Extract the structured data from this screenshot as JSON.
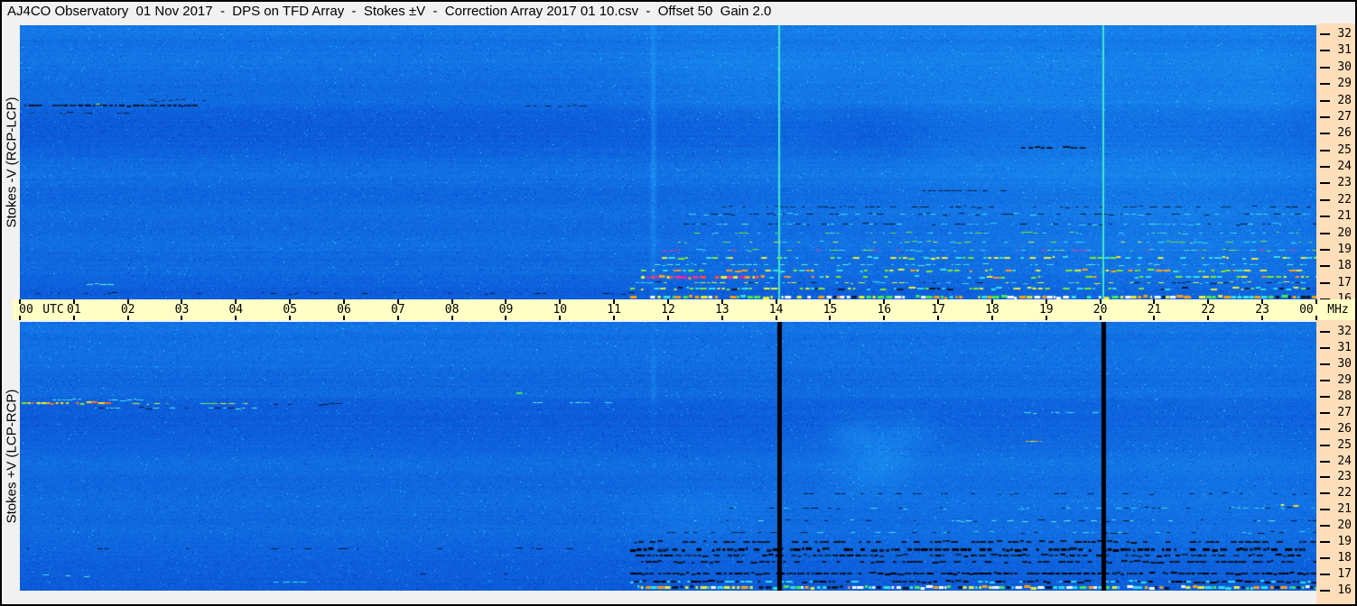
{
  "window": {
    "title": "AJ4CO Observatory  01 Nov 2017  -  DPS on TFD Array  -  Stokes ±V  -  Correction Array 2017 01 10.csv  -  Offset 50  Gain 2.0"
  },
  "left_labels": {
    "top": "Stokes -V (RCP-LCP)",
    "bottom": "Stokes +V (LCP-RCP)"
  },
  "time_axis": {
    "utc_label": "UTC",
    "unit_label": "MHz",
    "hours": [
      "00",
      "01",
      "02",
      "03",
      "04",
      "05",
      "06",
      "07",
      "08",
      "09",
      "10",
      "11",
      "12",
      "13",
      "14",
      "15",
      "16",
      "17",
      "18",
      "19",
      "20",
      "21",
      "22",
      "23",
      "00"
    ]
  },
  "freq_axis": {
    "ticks": [
      "32",
      "31",
      "30",
      "29",
      "28",
      "27",
      "26",
      "25",
      "24",
      "23",
      "22",
      "21",
      "20",
      "19",
      "18",
      "17",
      "16"
    ]
  },
  "colors": {
    "frame_bg": "#F1F1F1",
    "time_strip_bg": "#FFFFC6",
    "freq_col_bg": "#FFDEBA",
    "panel_base_blue": "#0E64DE",
    "marker_cyan": "#3FE9C4",
    "marker_black": "#000000",
    "text": "#000000"
  },
  "chart_data": {
    "type": "heatmap",
    "title": "AJ4CO Observatory 01 Nov 2017 - DPS on TFD Array - Stokes ±V - Correction Array 2017 01 10.csv - Offset 50 Gain 2.0",
    "x_axis": {
      "label": "UTC",
      "unit": "hours",
      "range": [
        0,
        24
      ],
      "tick_labels": [
        "00",
        "01",
        "02",
        "03",
        "04",
        "05",
        "06",
        "07",
        "08",
        "09",
        "10",
        "11",
        "12",
        "13",
        "14",
        "15",
        "16",
        "17",
        "18",
        "19",
        "20",
        "21",
        "22",
        "23",
        "00"
      ]
    },
    "y_axis": {
      "label": "MHz",
      "unit": "MHz",
      "range": [
        16,
        32
      ],
      "tick_labels": [
        32,
        31,
        30,
        29,
        28,
        27,
        26,
        25,
        24,
        23,
        22,
        21,
        20,
        19,
        18,
        17,
        16
      ]
    },
    "legend": "off",
    "grid": "off",
    "panels": [
      {
        "id": "stokes-minus-v",
        "label": "Stokes -V (RCP-LCP)",
        "bands": [
          {
            "f": 32.3,
            "w": 0.5,
            "d": 20
          },
          {
            "f": 31.0,
            "w": 0.9,
            "d": 14
          },
          {
            "f": 29.8,
            "w": 0.9,
            "d": 10
          },
          {
            "f": 28.1,
            "w": 0.6,
            "d": 8
          },
          {
            "f": 26.3,
            "w": 1.2,
            "d": -9
          },
          {
            "f": 23.6,
            "w": 0.9,
            "d": 11
          },
          {
            "f": 21.2,
            "w": 0.7,
            "d": 9
          },
          {
            "f": 19.4,
            "w": 0.8,
            "d": 9
          },
          {
            "f": 17.9,
            "w": 0.5,
            "d": 6
          },
          {
            "f": 16.4,
            "w": 0.5,
            "d": -6
          }
        ],
        "patches": [
          {
            "h": 18.0,
            "hw": 5.0,
            "f": 27.5,
            "fw": 4.5,
            "d": 13
          },
          {
            "h": 21.8,
            "hw": 2.8,
            "f": 22.0,
            "fw": 7.0,
            "d": 9
          },
          {
            "h": 19.0,
            "hw": 6.0,
            "f": 24.0,
            "fw": 9.0,
            "d": 8
          },
          {
            "h": 15.8,
            "hw": 1.1,
            "f": 26.0,
            "fw": 2.0,
            "d": -11
          },
          {
            "h": 13.0,
            "hw": 1.5,
            "f": 29.5,
            "fw": 2.5,
            "d": 8
          },
          {
            "h": 11.72,
            "hw": 0.05,
            "f": 25.0,
            "fw": 10.0,
            "d": 26
          },
          {
            "h": 23.0,
            "hw": 1.2,
            "f": 29.0,
            "fw": 3.0,
            "d": 10
          }
        ],
        "streaks": [
          {
            "f": 27.65,
            "h0": 0.1,
            "h1": 3.3,
            "colors": [
              "#04182E",
              "#0A2A50",
              "#001020"
            ],
            "th": 2,
            "density": 0.85
          },
          {
            "f": 27.25,
            "h0": 0.2,
            "h1": 2.1,
            "colors": [
              "#04182E",
              "#123A66"
            ],
            "th": 1,
            "density": 0.5
          },
          {
            "f": 28.0,
            "h0": 2.4,
            "h1": 3.4,
            "colors": [
              "#0A2A50"
            ],
            "th": 1,
            "density": 0.5
          },
          {
            "f": 27.8,
            "h0": 1.1,
            "h1": 2.3,
            "colors": [
              "#CFF04A",
              "#49E855"
            ],
            "th": 1,
            "density": 0.25
          },
          {
            "f": 27.7,
            "h0": 9.25,
            "h1": 10.6,
            "colors": [
              "#04182E",
              "#0A2A50"
            ],
            "th": 1,
            "density": 0.6
          },
          {
            "f": 25.1,
            "h0": 18.55,
            "h1": 19.7,
            "colors": [
              "#04182E",
              "#0A2A50"
            ],
            "th": 2,
            "density": 0.7
          },
          {
            "f": 22.55,
            "h0": 16.5,
            "h1": 18.3,
            "colors": [
              "#04182E"
            ],
            "th": 1,
            "density": 0.5
          },
          {
            "f": 21.6,
            "h0": 13.0,
            "h1": 24.0,
            "colors": [
              "#04182E",
              "#0E3058"
            ],
            "th": 1,
            "density": 0.45
          },
          {
            "f": 21.15,
            "h0": 12.4,
            "h1": 24.0,
            "colors": [
              "#04182E",
              "#35E0E8"
            ],
            "th": 1,
            "density": 0.5
          },
          {
            "f": 20.55,
            "h0": 12.3,
            "h1": 24.0,
            "colors": [
              "#2FC8F0",
              "#04182E",
              "#58F0D8"
            ],
            "th": 1,
            "density": 0.5
          },
          {
            "f": 20.0,
            "h0": 12.5,
            "h1": 24.0,
            "colors": [
              "#35E0E8",
              "#7FE82F"
            ],
            "th": 1,
            "density": 0.4
          },
          {
            "f": 19.45,
            "h0": 12.2,
            "h1": 24.0,
            "colors": [
              "#E8F03A",
              "#35E0E8",
              "#7FE82F"
            ],
            "th": 1,
            "density": 0.45
          },
          {
            "f": 18.95,
            "h0": 11.9,
            "h1": 24.0,
            "colors": [
              "#35E0E8",
              "#FF2F8F",
              "#7FE82F"
            ],
            "th": 1,
            "density": 0.5
          },
          {
            "f": 18.5,
            "h0": 11.9,
            "h1": 24.0,
            "colors": [
              "#7FE82F",
              "#E8F03A",
              "#35E0E8"
            ],
            "th": 2,
            "density": 0.55
          },
          {
            "f": 18.1,
            "h0": 11.6,
            "h1": 24.0,
            "colors": [
              "#35E0E8",
              "#58F0D8"
            ],
            "th": 1,
            "density": 0.5
          },
          {
            "f": 17.7,
            "h0": 11.5,
            "h1": 24.0,
            "colors": [
              "#E8F03A",
              "#7FE82F",
              "#FFA018",
              "#35E0E8"
            ],
            "th": 2,
            "density": 0.6
          },
          {
            "f": 17.35,
            "h0": 11.5,
            "h1": 13.8,
            "colors": [
              "#FF2F8F",
              "#FF4A4A",
              "#E81BB0",
              "#FFA018",
              "#E8F03A"
            ],
            "th": 3,
            "density": 0.95
          },
          {
            "f": 17.35,
            "h0": 13.8,
            "h1": 24.0,
            "colors": [
              "#E8F03A",
              "#7FE82F",
              "#FF8A3A",
              "#35E0E8"
            ],
            "th": 2,
            "density": 0.5
          },
          {
            "f": 17.0,
            "h0": 11.4,
            "h1": 24.0,
            "colors": [
              "#35E0E8",
              "#E8F03A",
              "#04182E"
            ],
            "th": 1,
            "density": 0.55
          },
          {
            "f": 16.6,
            "h0": 11.3,
            "h1": 24.0,
            "colors": [
              "#7FE82F",
              "#35E0E8",
              "#E8F03A",
              "#04182E"
            ],
            "th": 2,
            "density": 0.65
          },
          {
            "f": 16.15,
            "h0": 11.3,
            "h1": 24.0,
            "colors": [
              "#E8F03A",
              "#49E855",
              "#35E0E8",
              "#04182E",
              "#FFFFFF",
              "#FFA018"
            ],
            "th": 3,
            "density": 0.9
          },
          {
            "f": 16.9,
            "h0": 1.25,
            "h1": 1.7,
            "colors": [
              "#58F0D8"
            ],
            "th": 1,
            "density": 0.7
          },
          {
            "f": 16.35,
            "h0": 0.3,
            "h1": 11.3,
            "colors": [
              "#04182E",
              "#0E3058"
            ],
            "th": 1,
            "density": 0.2
          }
        ],
        "vlines": [
          {
            "h": 14.07,
            "color": "#3FE9C4",
            "w": 2
          },
          {
            "h": 20.06,
            "color": "#3FE9C4",
            "w": 2
          }
        ]
      },
      {
        "id": "stokes-plus-v",
        "label": "Stokes +V (LCP-RCP)",
        "bands": [
          {
            "f": 32.3,
            "w": 0.5,
            "d": 16
          },
          {
            "f": 31.0,
            "w": 0.8,
            "d": 10
          },
          {
            "f": 29.9,
            "w": 0.8,
            "d": 8
          },
          {
            "f": 28.3,
            "w": 0.5,
            "d": 6
          },
          {
            "f": 26.6,
            "w": 1.2,
            "d": -8
          },
          {
            "f": 23.7,
            "w": 0.9,
            "d": 8
          },
          {
            "f": 21.3,
            "w": 0.8,
            "d": 8
          },
          {
            "f": 19.6,
            "w": 0.7,
            "d": 6
          },
          {
            "f": 17.3,
            "w": 0.8,
            "d": -7
          },
          {
            "f": 16.3,
            "w": 0.4,
            "d": -8
          }
        ],
        "patches": [
          {
            "h": 15.4,
            "hw": 0.45,
            "f": 25.6,
            "fw": 1.2,
            "d": 20
          },
          {
            "h": 16.0,
            "hw": 0.5,
            "f": 24.7,
            "fw": 1.5,
            "d": 18
          },
          {
            "h": 16.5,
            "hw": 0.5,
            "f": 25.8,
            "fw": 1.1,
            "d": 15
          },
          {
            "h": 15.7,
            "hw": 0.7,
            "f": 22.9,
            "fw": 1.1,
            "d": 13
          },
          {
            "h": 18.5,
            "hw": 4.5,
            "f": 24.0,
            "fw": 7.0,
            "d": 7
          },
          {
            "h": 22.5,
            "hw": 2.0,
            "f": 25.0,
            "fw": 6.0,
            "d": 8
          },
          {
            "h": 11.72,
            "hw": 0.05,
            "f": 29.0,
            "fw": 2.5,
            "d": 18
          },
          {
            "h": 12.6,
            "hw": 1.2,
            "f": 20.8,
            "fw": 1.5,
            "d": 10
          }
        ],
        "streaks": [
          {
            "f": 27.55,
            "h0": 0.05,
            "h1": 1.7,
            "colors": [
              "#FFD81E",
              "#FFA018",
              "#E8F03A",
              "#FF6A2A",
              "#7FE82F"
            ],
            "th": 2,
            "density": 0.95
          },
          {
            "f": 27.8,
            "h0": 0.5,
            "h1": 2.3,
            "colors": [
              "#58F0D8",
              "#35E0E8"
            ],
            "th": 1,
            "density": 0.5
          },
          {
            "f": 27.55,
            "h0": 1.7,
            "h1": 4.2,
            "colors": [
              "#58F0D8",
              "#7FE82F",
              "#E8F03A"
            ],
            "th": 1,
            "density": 0.4
          },
          {
            "f": 27.3,
            "h0": 1.4,
            "h1": 4.3,
            "colors": [
              "#35E0E8",
              "#04182E",
              "#58F0D8"
            ],
            "th": 1,
            "density": 0.55
          },
          {
            "f": 27.5,
            "h0": 4.3,
            "h1": 6.0,
            "colors": [
              "#04182E"
            ],
            "th": 1,
            "density": 0.4
          },
          {
            "f": 27.6,
            "h0": 9.5,
            "h1": 10.9,
            "colors": [
              "#58F0D8",
              "#35E0E8"
            ],
            "th": 1,
            "density": 0.55
          },
          {
            "f": 28.2,
            "h0": 9.2,
            "h1": 9.35,
            "colors": [
              "#49E855"
            ],
            "th": 2,
            "density": 0.9
          },
          {
            "f": 27.0,
            "h0": 18.6,
            "h1": 19.9,
            "colors": [
              "#58F0D8",
              "#35E0E8"
            ],
            "th": 1,
            "density": 0.5
          },
          {
            "f": 25.2,
            "h0": 18.55,
            "h1": 18.9,
            "colors": [
              "#FFA018",
              "#E8F03A"
            ],
            "th": 1,
            "density": 0.8
          },
          {
            "f": 19.0,
            "h0": 11.3,
            "h1": 24.0,
            "colors": [
              "#04182E",
              "#0A1220"
            ],
            "th": 2,
            "density": 0.6
          },
          {
            "f": 18.55,
            "h0": 11.3,
            "h1": 24.0,
            "colors": [
              "#04182E",
              "#000000"
            ],
            "th": 3,
            "density": 0.8
          },
          {
            "f": 18.15,
            "h0": 11.4,
            "h1": 24.0,
            "colors": [
              "#04182E",
              "#000000",
              "#0E3058"
            ],
            "th": 2,
            "density": 0.7
          },
          {
            "f": 17.75,
            "h0": 11.5,
            "h1": 24.0,
            "colors": [
              "#04182E",
              "#0A1220"
            ],
            "th": 2,
            "density": 0.6
          },
          {
            "f": 17.05,
            "h0": 11.3,
            "h1": 24.0,
            "colors": [
              "#000000",
              "#04182E"
            ],
            "th": 2,
            "density": 0.9
          },
          {
            "f": 16.55,
            "h0": 11.3,
            "h1": 24.0,
            "colors": [
              "#04182E",
              "#000000",
              "#35E0E8"
            ],
            "th": 2,
            "density": 0.8
          },
          {
            "f": 16.2,
            "h0": 11.3,
            "h1": 24.0,
            "colors": [
              "#E8F03A",
              "#35E0E8",
              "#49E855",
              "#04182E",
              "#FFA018",
              "#FFFFFF"
            ],
            "th": 3,
            "density": 0.9
          },
          {
            "f": 19.6,
            "h0": 12.0,
            "h1": 24.0,
            "colors": [
              "#04182E",
              "#35E0E8"
            ],
            "th": 1,
            "density": 0.4
          },
          {
            "f": 20.3,
            "h0": 12.5,
            "h1": 24.0,
            "colors": [
              "#04182E",
              "#58F0D8"
            ],
            "th": 1,
            "density": 0.35
          },
          {
            "f": 21.1,
            "h0": 13.0,
            "h1": 24.0,
            "colors": [
              "#04182E",
              "#35E0E8"
            ],
            "th": 1,
            "density": 0.35
          },
          {
            "f": 22.0,
            "h0": 14.0,
            "h1": 24.0,
            "colors": [
              "#04182E"
            ],
            "th": 1,
            "density": 0.25
          },
          {
            "f": 16.9,
            "h0": 0.25,
            "h1": 1.3,
            "colors": [
              "#35E0E8",
              "#58F0D8"
            ],
            "th": 1,
            "density": 0.5
          },
          {
            "f": 16.55,
            "h0": 4.7,
            "h1": 5.3,
            "colors": [
              "#35E0E8"
            ],
            "th": 1,
            "density": 0.6
          },
          {
            "f": 21.2,
            "h0": 23.2,
            "h1": 23.6,
            "colors": [
              "#E8F03A",
              "#FFD81E"
            ],
            "th": 2,
            "density": 0.8
          },
          {
            "f": 18.6,
            "h0": 0.0,
            "h1": 11.3,
            "colors": [
              "#04182E"
            ],
            "th": 1,
            "density": 0.12
          },
          {
            "f": 17.05,
            "h0": 7.0,
            "h1": 11.3,
            "colors": [
              "#04182E"
            ],
            "th": 1,
            "density": 0.15
          }
        ],
        "vlines": [
          {
            "h": 14.07,
            "color": "#000000",
            "w": 5
          },
          {
            "h": 20.06,
            "color": "#000000",
            "w": 5
          }
        ]
      }
    ]
  }
}
